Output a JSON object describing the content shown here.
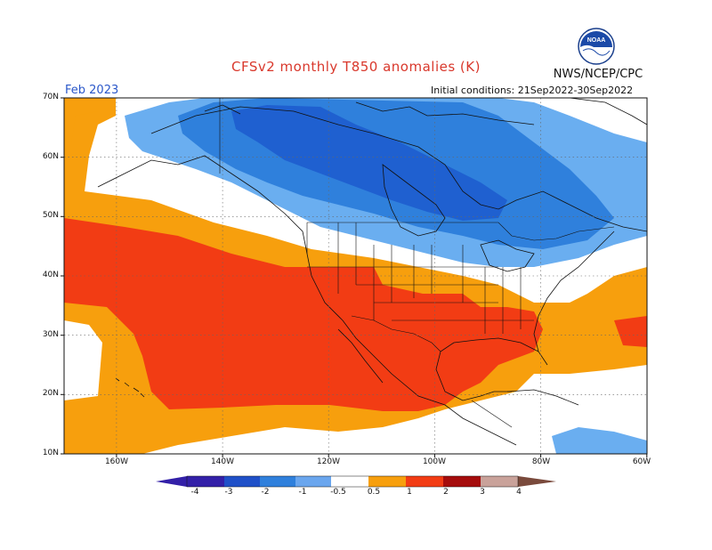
{
  "header": {
    "title": "CFSv2 monthly T850 anomalies (K)",
    "agency": "NWS/NCEP/CPC",
    "month": "Feb 2023",
    "initial_conditions": "Initial conditions: 21Sep2022-30Sep2022"
  },
  "logo": {
    "text": "NOAA",
    "icon": "noaa-logo"
  },
  "axes": {
    "lat_labels": [
      "70N",
      "60N",
      "50N",
      "40N",
      "30N",
      "20N",
      "10N"
    ],
    "lon_labels": [
      "160W",
      "140W",
      "120W",
      "100W",
      "80W",
      "60W"
    ]
  },
  "colorbar": {
    "labels": [
      "-4",
      "-3",
      "-2",
      "-1",
      "-0.5",
      "0.5",
      "1",
      "2",
      "3",
      "4"
    ],
    "colors": [
      "#3320a8",
      "#1f50c8",
      "#2f80dc",
      "#6aa6ee",
      "#ffffff",
      "#f79f0d",
      "#f23c14",
      "#a50c0c",
      "#c9a29a",
      "#7a4a3c"
    ]
  },
  "legend_colors": {
    "neg_strong": "#1f60d0",
    "neg_mid": "#2f80dc",
    "neg_light": "#6aaef0",
    "neutral": "#ffffff",
    "pos_light": "#f79f0d",
    "pos_mid": "#f23c14"
  }
}
